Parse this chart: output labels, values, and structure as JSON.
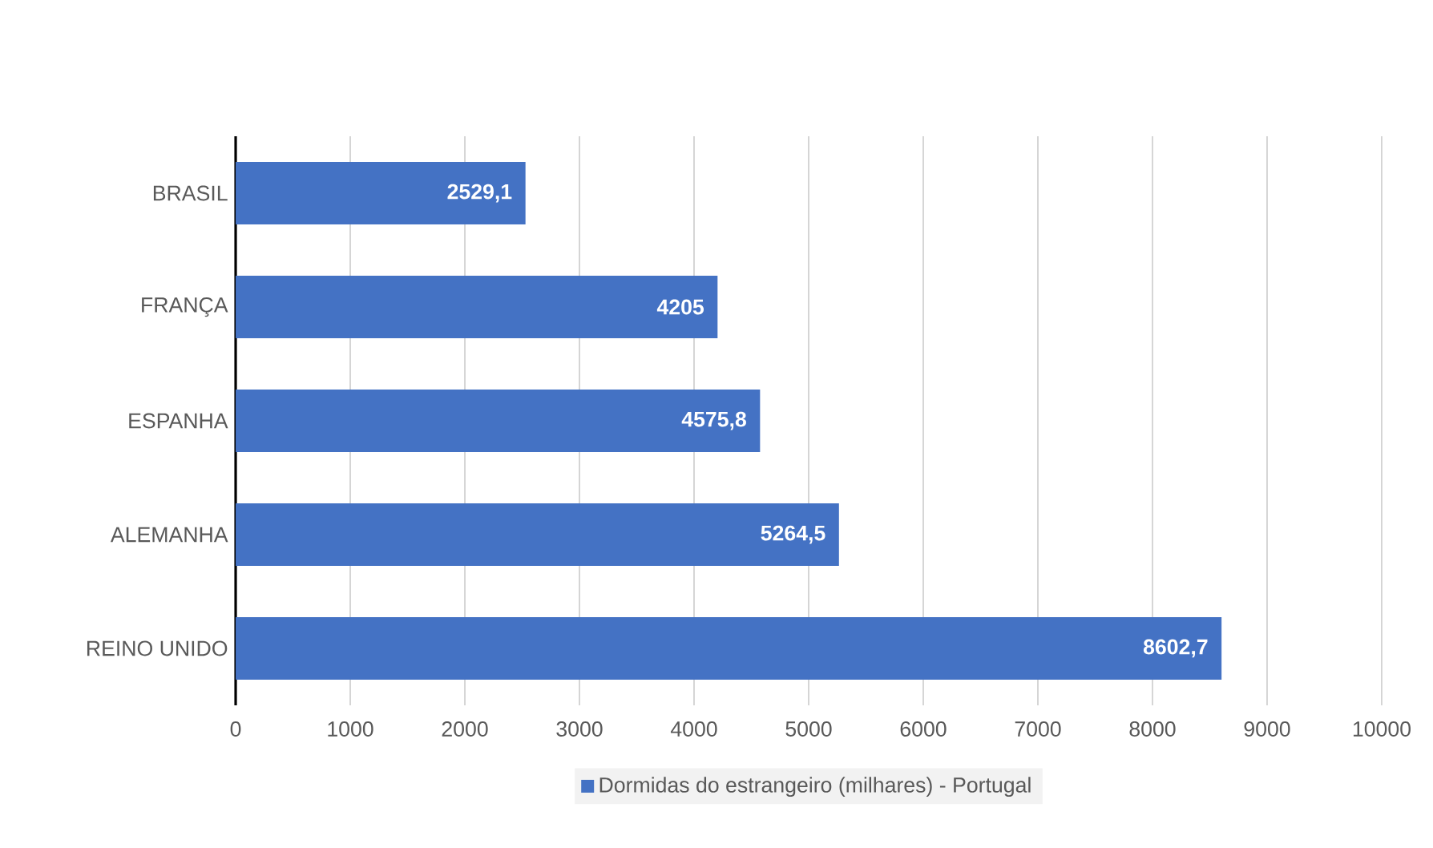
{
  "chart_data": {
    "type": "bar",
    "orientation": "horizontal",
    "categories": [
      "BRASIL",
      "FRANÇA",
      "ESPANHA",
      "ALEMANHA",
      "REINO UNIDO"
    ],
    "series": [
      {
        "name": "Dormidas do estrangeiro (milhares) - Portugal",
        "color": "#4472c4",
        "values": [
          2529.1,
          4205,
          4575.8,
          5264.5,
          8602.7
        ],
        "value_labels": [
          "2529,1",
          "4205",
          "4575,8",
          "5264,5",
          "8602,7"
        ]
      }
    ],
    "xlim": [
      0,
      10000
    ],
    "xticks": [
      0,
      1000,
      2000,
      3000,
      4000,
      5000,
      6000,
      7000,
      8000,
      9000,
      10000
    ],
    "grid": "x",
    "legend": "bottom"
  }
}
